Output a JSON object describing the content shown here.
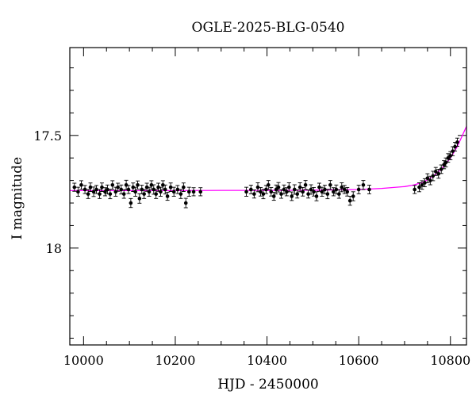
{
  "chart_data": {
    "type": "scatter",
    "title": "OGLE-2025-BLG-0540",
    "xlabel": "HJD - 2450000",
    "ylabel": "I magnitude",
    "xlim": [
      9970,
      10835
    ],
    "ylim": [
      18.43,
      17.11
    ],
    "y_inverted": true,
    "x_ticks": [
      10000,
      10200,
      10400,
      10600,
      10800
    ],
    "y_ticks": [
      17.5,
      18
    ],
    "x_minor_step": 50,
    "y_minor_step": 0.1,
    "grid": false,
    "colors": {
      "points": "#000000",
      "model": "#ff00ff"
    },
    "model": {
      "name": "",
      "x": [
        9970,
        10100,
        10200,
        10300,
        10400,
        10500,
        10600,
        10650,
        10700,
        10720,
        10740,
        10760,
        10780,
        10800,
        10815,
        10835
      ],
      "y": [
        17.745,
        17.745,
        17.745,
        17.744,
        17.744,
        17.743,
        17.74,
        17.735,
        17.727,
        17.72,
        17.708,
        17.685,
        17.65,
        17.6,
        17.55,
        17.46
      ]
    },
    "series": [
      {
        "name": "",
        "type": "errorbar",
        "x": [
          9980,
          9988,
          9995,
          10003,
          10010,
          10015,
          10022,
          10028,
          10035,
          10040,
          10047,
          10052,
          10058,
          10063,
          10070,
          10075,
          10082,
          10088,
          10093,
          10098,
          10103,
          10108,
          10113,
          10118,
          10122,
          10127,
          10132,
          10138,
          10143,
          10148,
          10153,
          10158,
          10163,
          10168,
          10173,
          10178,
          10183,
          10190,
          10197,
          10205,
          10212,
          10218,
          10223,
          10230,
          10240,
          10255,
          10355,
          10365,
          10372,
          10380,
          10386,
          10392,
          10398,
          10403,
          10409,
          10415,
          10420,
          10425,
          10431,
          10437,
          10443,
          10448,
          10454,
          10460,
          10466,
          10472,
          10478,
          10484,
          10490,
          10496,
          10502,
          10508,
          10514,
          10520,
          10526,
          10532,
          10538,
          10545,
          10551,
          10557,
          10563,
          10569,
          10575,
          10581,
          10588,
          10600,
          10610,
          10623,
          10722,
          10732,
          10738,
          10744,
          10750,
          10756,
          10762,
          10768,
          10774,
          10780,
          10786,
          10790,
          10795,
          10800,
          10805,
          10810,
          10815
        ],
        "y": [
          17.73,
          17.75,
          17.72,
          17.74,
          17.76,
          17.73,
          17.75,
          17.74,
          17.76,
          17.73,
          17.75,
          17.74,
          17.76,
          17.72,
          17.75,
          17.73,
          17.74,
          17.76,
          17.72,
          17.74,
          17.8,
          17.73,
          17.75,
          17.72,
          17.78,
          17.74,
          17.76,
          17.73,
          17.75,
          17.72,
          17.74,
          17.76,
          17.73,
          17.75,
          17.72,
          17.74,
          17.77,
          17.73,
          17.75,
          17.74,
          17.76,
          17.73,
          17.8,
          17.75,
          17.75,
          17.75,
          17.75,
          17.74,
          17.76,
          17.73,
          17.75,
          17.76,
          17.74,
          17.72,
          17.75,
          17.77,
          17.74,
          17.73,
          17.76,
          17.74,
          17.75,
          17.73,
          17.77,
          17.74,
          17.76,
          17.73,
          17.75,
          17.72,
          17.76,
          17.74,
          17.75,
          17.77,
          17.73,
          17.75,
          17.74,
          17.76,
          17.72,
          17.75,
          17.74,
          17.76,
          17.73,
          17.74,
          17.75,
          17.79,
          17.77,
          17.74,
          17.72,
          17.74,
          17.74,
          17.73,
          17.72,
          17.71,
          17.69,
          17.7,
          17.68,
          17.66,
          17.67,
          17.65,
          17.63,
          17.62,
          17.6,
          17.59,
          17.57,
          17.55,
          17.53
        ],
        "err": [
          0.018,
          0.02,
          0.019,
          0.018,
          0.02,
          0.019,
          0.021,
          0.018,
          0.02,
          0.019,
          0.018,
          0.02,
          0.021,
          0.019,
          0.02,
          0.018,
          0.02,
          0.019,
          0.021,
          0.018,
          0.02,
          0.019,
          0.02,
          0.018,
          0.021,
          0.019,
          0.02,
          0.018,
          0.02,
          0.019,
          0.021,
          0.02,
          0.018,
          0.02,
          0.019,
          0.02,
          0.018,
          0.019,
          0.02,
          0.018,
          0.02,
          0.019,
          0.021,
          0.02,
          0.018,
          0.018,
          0.02,
          0.019,
          0.018,
          0.02,
          0.019,
          0.021,
          0.018,
          0.02,
          0.019,
          0.018,
          0.02,
          0.021,
          0.019,
          0.02,
          0.018,
          0.02,
          0.019,
          0.021,
          0.018,
          0.02,
          0.019,
          0.02,
          0.018,
          0.021,
          0.019,
          0.02,
          0.018,
          0.02,
          0.019,
          0.021,
          0.02,
          0.018,
          0.02,
          0.019,
          0.02,
          0.018,
          0.019,
          0.02,
          0.02,
          0.019,
          0.02,
          0.019,
          0.018,
          0.02,
          0.019,
          0.018,
          0.02,
          0.019,
          0.021,
          0.018,
          0.02,
          0.019,
          0.018,
          0.02,
          0.019,
          0.018,
          0.02,
          0.019,
          0.018
        ]
      }
    ]
  }
}
